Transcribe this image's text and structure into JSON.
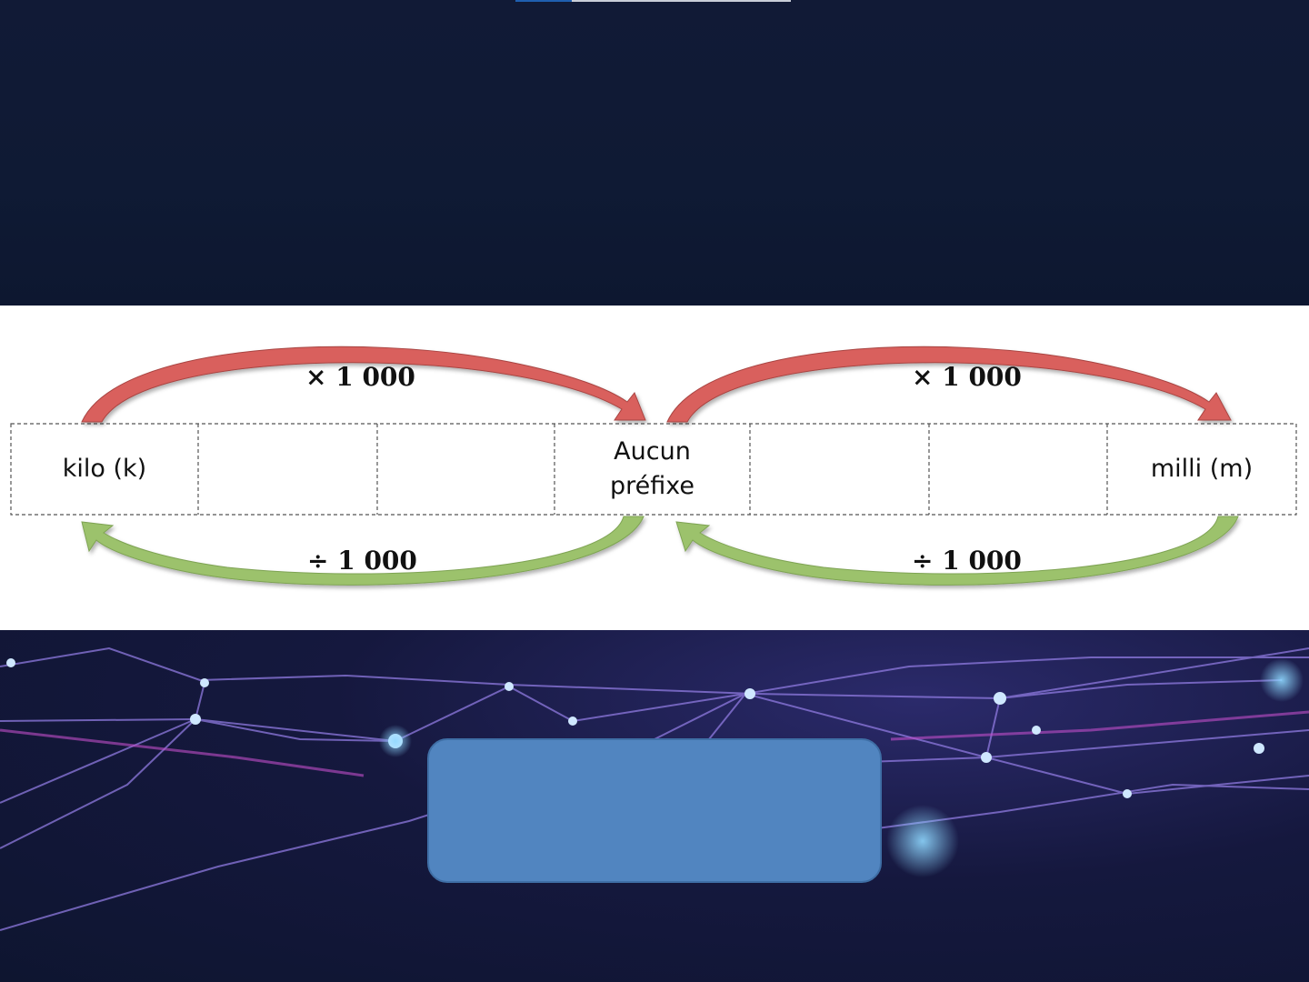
{
  "colors": {
    "dark_background": "#0f1a33",
    "arrow_multiply": "#d9605d",
    "arrow_divide": "#9cc26c",
    "blue_box": "#5185c0"
  },
  "diagram": {
    "cells": [
      "kilo (k)",
      "",
      "",
      "Aucun\npréfixe",
      "",
      "",
      "milli (m)"
    ],
    "multiply_labels": [
      "× 1 000",
      "× 1 000"
    ],
    "divide_labels": [
      "÷ 1 000",
      "÷ 1 000"
    ]
  }
}
